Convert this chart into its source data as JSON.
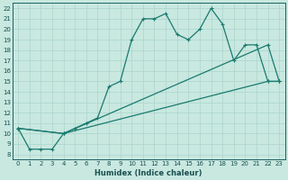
{
  "xlabel": "Humidex (Indice chaleur)",
  "bg_color": "#c8e8e0",
  "grid_color": "#b0d8d0",
  "line_color": "#1a7a6e",
  "xlim": [
    -0.5,
    23.5
  ],
  "ylim": [
    7.5,
    22.5
  ],
  "xticks": [
    0,
    1,
    2,
    3,
    4,
    5,
    6,
    7,
    8,
    9,
    10,
    11,
    12,
    13,
    14,
    15,
    16,
    17,
    18,
    19,
    20,
    21,
    22,
    23
  ],
  "yticks": [
    8,
    9,
    10,
    11,
    12,
    13,
    14,
    15,
    16,
    17,
    18,
    19,
    20,
    21,
    22
  ],
  "line1_x": [
    0,
    1,
    2,
    3,
    4,
    5,
    6,
    7,
    8,
    9,
    10,
    11,
    12,
    13,
    14,
    15,
    16,
    17,
    18,
    19,
    20,
    21,
    22,
    23
  ],
  "line1_y": [
    10.5,
    8.5,
    8.5,
    8.5,
    10.0,
    10.5,
    11.0,
    11.5,
    14.5,
    15.0,
    19.0,
    21.0,
    21.0,
    21.5,
    19.5,
    19.0,
    20.0,
    22.0,
    20.5,
    17.0,
    18.5,
    18.5,
    15.0,
    15.0
  ],
  "line2_x": [
    0,
    4,
    22,
    23
  ],
  "line2_y": [
    10.5,
    10.0,
    18.5,
    15.0
  ],
  "line3_x": [
    0,
    4,
    22,
    23
  ],
  "line3_y": [
    10.5,
    10.0,
    15.0,
    15.0
  ],
  "tick_fontsize": 5.0,
  "xlabel_fontsize": 6.0,
  "tick_color": "#1a5050",
  "xlabel_color": "#1a5050"
}
